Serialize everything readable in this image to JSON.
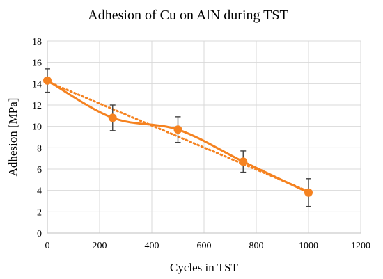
{
  "chart_data": {
    "type": "line",
    "title": "Adhesion of Cu on AlN during TST",
    "xlabel": "Cycles in TST",
    "ylabel": "Adhesion [MPa]",
    "xlim": [
      0,
      1200
    ],
    "ylim": [
      0,
      18
    ],
    "x_ticks": [
      0,
      200,
      400,
      600,
      800,
      1000,
      1200
    ],
    "y_ticks": [
      0,
      2,
      4,
      6,
      8,
      10,
      12,
      14,
      16,
      18
    ],
    "grid": true,
    "legend": "none",
    "series": [
      {
        "x": [
          0,
          250,
          500,
          750,
          1000
        ],
        "values": [
          14.3,
          10.8,
          9.7,
          6.7,
          3.8
        ],
        "error": [
          1.1,
          1.2,
          1.2,
          1.0,
          1.3
        ],
        "color": "#F58220",
        "style": "smooth-line-with-markers"
      }
    ],
    "trendline": {
      "type": "linear",
      "style": "dotted",
      "color": "#F58220",
      "x": [
        0,
        1000
      ],
      "values": [
        14.2,
        3.9
      ]
    }
  }
}
